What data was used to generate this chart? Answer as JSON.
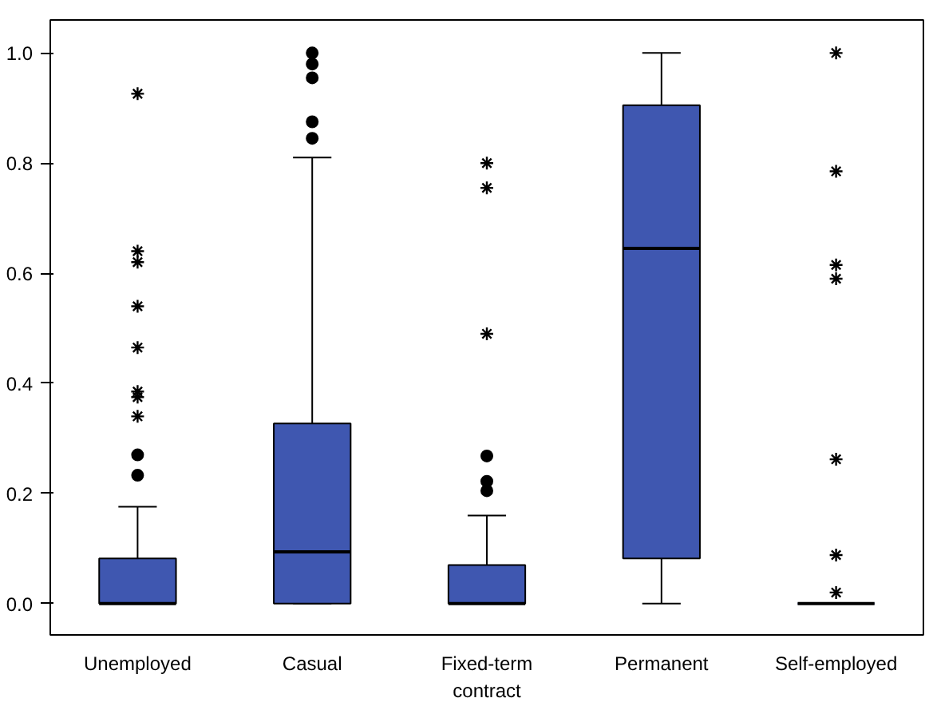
{
  "chart_data": {
    "type": "box",
    "categories": [
      "Unemployed",
      "Casual",
      "Fixed-term\ncontract",
      "Permanent",
      "Self-employed"
    ],
    "boxes": [
      {
        "low": 0,
        "q1": 0,
        "median": 0,
        "q3": 0.082,
        "high": 0.176,
        "outliers": [
          0.233,
          0.27,
          0.34,
          0.375,
          0.385,
          0.465,
          0.54,
          0.62,
          0.64,
          0.926
        ]
      },
      {
        "low": 0,
        "q1": 0,
        "median": 0.094,
        "q3": 0.327,
        "high": 0.81,
        "outliers": [
          0.845,
          0.875,
          0.955,
          0.98,
          1.0
        ]
      },
      {
        "low": 0,
        "q1": 0,
        "median": 0,
        "q3": 0.07,
        "high": 0.16,
        "outliers": [
          0.205,
          0.222,
          0.268,
          0.49,
          0.755,
          0.8
        ]
      },
      {
        "low": 0,
        "q1": 0.082,
        "median": 0.645,
        "q3": 0.905,
        "high": 1.0
      },
      {
        "low": 0,
        "q1": 0,
        "median": 0,
        "q3": 0,
        "high": 0,
        "outliers": [
          0.02,
          0.088,
          0.262,
          0.59,
          0.615,
          0.785,
          1.0
        ]
      }
    ],
    "color": "#3f57b0",
    "ylim": [
      -0.057,
      1.06
    ],
    "yticks": [
      {
        "value": 0,
        "label": "0.0"
      },
      {
        "value": 0.2,
        "label": "0.2"
      },
      {
        "value": 0.4,
        "label": "0.4"
      },
      {
        "value": 0.6,
        "label": "0.6"
      },
      {
        "value": 0.8,
        "label": "0.8"
      },
      {
        "value": 1.0,
        "label": "1.0"
      }
    ],
    "grid": false
  }
}
